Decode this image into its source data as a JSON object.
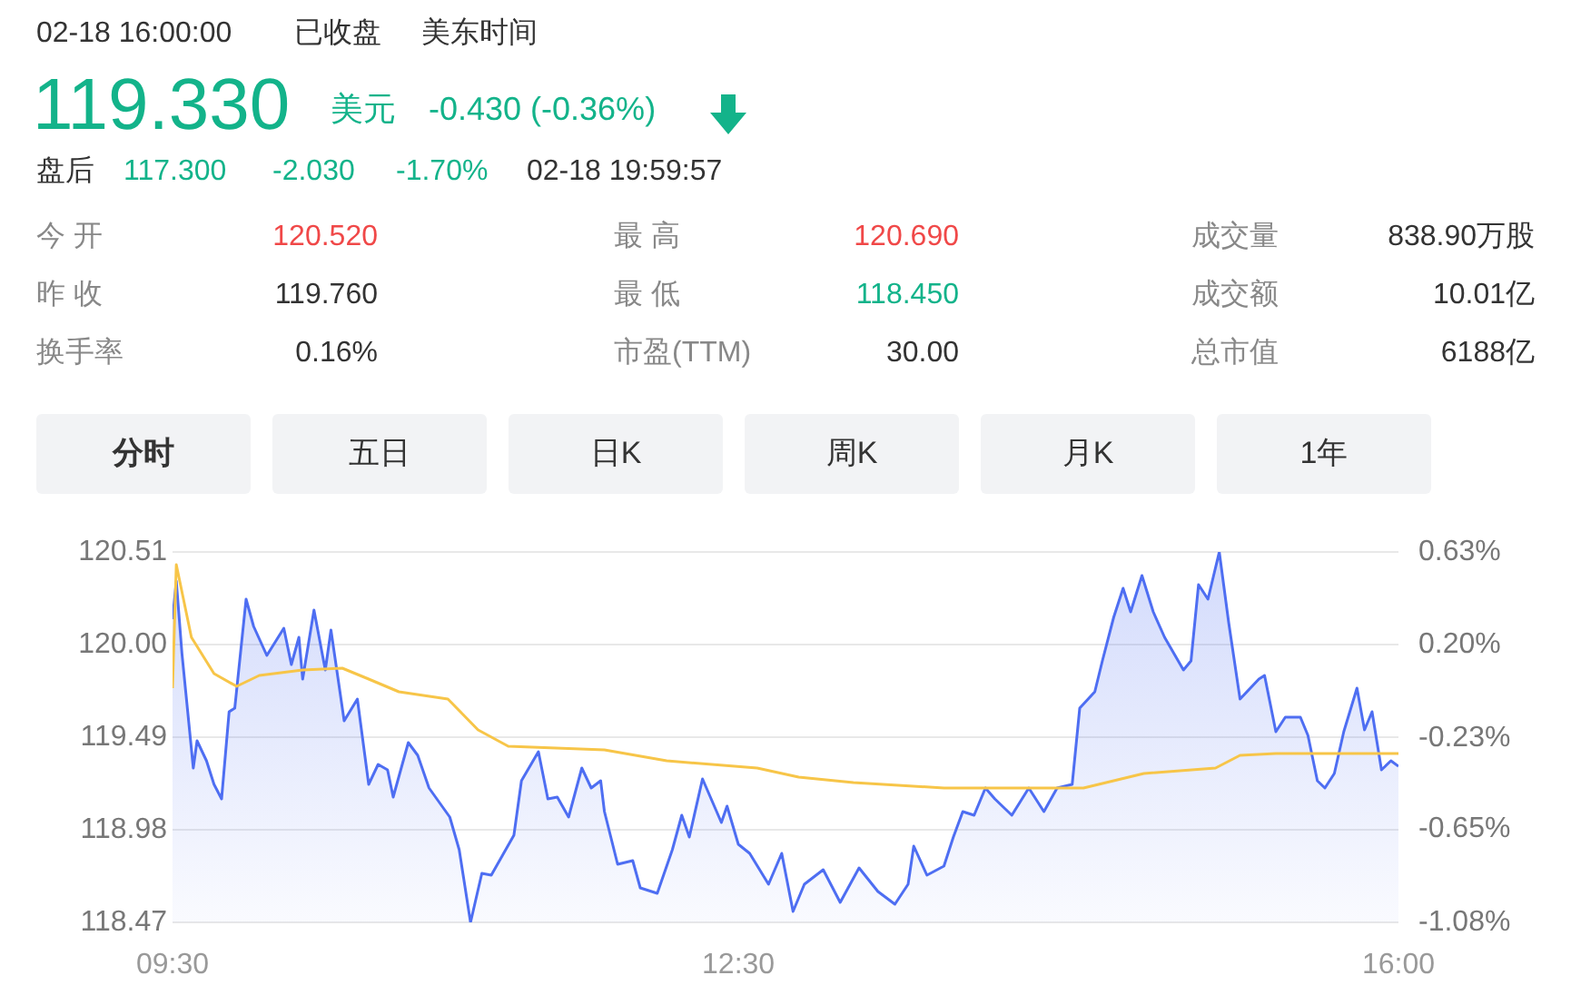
{
  "chart_data": {
    "type": "line",
    "xlim": [
      9.5,
      16
    ],
    "xticks": [
      {
        "value": 9.5,
        "label": "09:30"
      },
      {
        "value": 12.5,
        "label": "12:30"
      },
      {
        "value": 16,
        "label": "16:00"
      }
    ],
    "ylim": [
      118.47,
      120.51
    ],
    "yticks": [
      118.47,
      118.98,
      119.49,
      {
        "value": 120,
        "label": "120.00"
      },
      120.51
    ],
    "y2lim": [
      -1.08,
      0.63
    ],
    "y2ticks": [
      {
        "value": -1.08,
        "label": "-1.08%"
      },
      {
        "value": -0.65,
        "label": "-0.65%"
      },
      {
        "value": -0.23,
        "label": "-0.23%"
      },
      {
        "value": 0.2,
        "label": "0.20%"
      },
      {
        "value": 0.63,
        "label": "0.63%"
      }
    ],
    "grid": "y",
    "legend": false,
    "marker": "none",
    "annotations": [
      "02-18 16:00:00",
      "已收盘",
      "美东时间",
      "119.330",
      "美元",
      "-0.430 (-0.36%)",
      "盘后",
      "117.300",
      "-2.030",
      "-1.70%",
      "02-18 19:59:57",
      "今 开",
      "120.520",
      "最 高",
      "120.690",
      "成交量",
      "838.90万股",
      "昨 收",
      "119.760",
      "最 低",
      "118.450",
      "成交额",
      "10.01亿",
      "换手率",
      "0.16%",
      "市盈(TTM)",
      "30.00",
      "总市值",
      "6188亿",
      "分时",
      "五日",
      "日K",
      "周K",
      "月K",
      "1年"
    ],
    "series": [
      {
        "type": "area",
        "color": "#4e6ef2",
        "x": [
          9.5,
          9.52,
          9.55,
          9.61,
          9.63,
          9.68,
          9.72,
          9.76,
          9.8,
          9.83,
          9.89,
          9.93,
          10,
          10.09,
          10.13,
          10.17,
          10.19,
          10.25,
          10.31,
          10.34,
          10.41,
          10.48,
          10.54,
          10.59,
          10.64,
          10.67,
          10.75,
          10.8,
          10.86,
          10.97,
          11.02,
          11.08,
          11.14,
          11.19,
          11.25,
          11.31,
          11.35,
          11.44,
          11.49,
          11.54,
          11.6,
          11.67,
          11.72,
          11.77,
          11.79,
          11.86,
          11.94,
          11.98,
          12.07,
          12.15,
          12.2,
          12.24,
          12.31,
          12.41,
          12.44,
          12.5,
          12.56,
          12.66,
          12.73,
          12.79,
          12.85,
          12.95,
          13.04,
          13.14,
          13.24,
          13.33,
          13.4,
          13.43,
          13.5,
          13.59,
          13.64,
          13.69,
          13.75,
          13.81,
          13.86,
          13.95,
          14.04,
          14.12,
          14.19,
          14.27,
          14.31,
          14.39,
          14.43,
          14.49,
          14.54,
          14.58,
          14.64,
          14.7,
          14.76,
          14.86,
          14.9,
          14.94,
          14.99,
          15.05,
          15.1,
          15.16,
          15.26,
          15.29,
          15.35,
          15.4,
          15.48,
          15.52,
          15.57,
          15.61,
          15.66,
          15.71,
          15.78,
          15.82,
          15.86,
          15.91,
          15.96,
          16
        ],
        "values": [
          120.14,
          120.35,
          119.95,
          119.32,
          119.47,
          119.36,
          119.23,
          119.15,
          119.63,
          119.65,
          120.25,
          120.1,
          119.94,
          120.09,
          119.89,
          120.04,
          119.81,
          120.19,
          119.86,
          120.08,
          119.58,
          119.7,
          119.23,
          119.34,
          119.31,
          119.16,
          119.46,
          119.39,
          119.21,
          119.05,
          118.87,
          118.47,
          118.74,
          118.73,
          118.84,
          118.95,
          119.25,
          119.41,
          119.15,
          119.16,
          119.05,
          119.32,
          119.21,
          119.25,
          119.08,
          118.79,
          118.81,
          118.66,
          118.63,
          118.87,
          119.06,
          118.94,
          119.26,
          119.02,
          119.11,
          118.9,
          118.85,
          118.68,
          118.85,
          118.53,
          118.68,
          118.76,
          118.58,
          118.77,
          118.64,
          118.57,
          118.68,
          118.89,
          118.73,
          118.78,
          118.94,
          119.08,
          119.06,
          119.21,
          119.15,
          119.06,
          119.21,
          119.08,
          119.21,
          119.23,
          119.65,
          119.74,
          119.91,
          120.15,
          120.31,
          120.18,
          120.38,
          120.18,
          120.04,
          119.86,
          119.91,
          120.33,
          120.25,
          120.51,
          120.12,
          119.7,
          119.81,
          119.83,
          119.52,
          119.6,
          119.6,
          119.5,
          119.25,
          119.21,
          119.29,
          119.52,
          119.76,
          119.53,
          119.63,
          119.31,
          119.36,
          119.33
        ]
      },
      {
        "color": "#f7c548",
        "x": [
          9.5,
          9.52,
          9.6,
          9.72,
          9.84,
          9.96,
          10.19,
          10.4,
          10.54,
          10.7,
          10.96,
          11.12,
          11.28,
          11.79,
          12.12,
          12.6,
          12.82,
          13.11,
          13.59,
          14.33,
          14.65,
          15.03,
          15.16,
          15.35,
          16
        ],
        "values": [
          119.76,
          120.44,
          120.04,
          119.84,
          119.77,
          119.83,
          119.86,
          119.87,
          119.81,
          119.74,
          119.7,
          119.53,
          119.44,
          119.42,
          119.36,
          119.32,
          119.27,
          119.24,
          119.21,
          119.21,
          119.29,
          119.32,
          119.39,
          119.4,
          119.4
        ]
      }
    ]
  }
}
